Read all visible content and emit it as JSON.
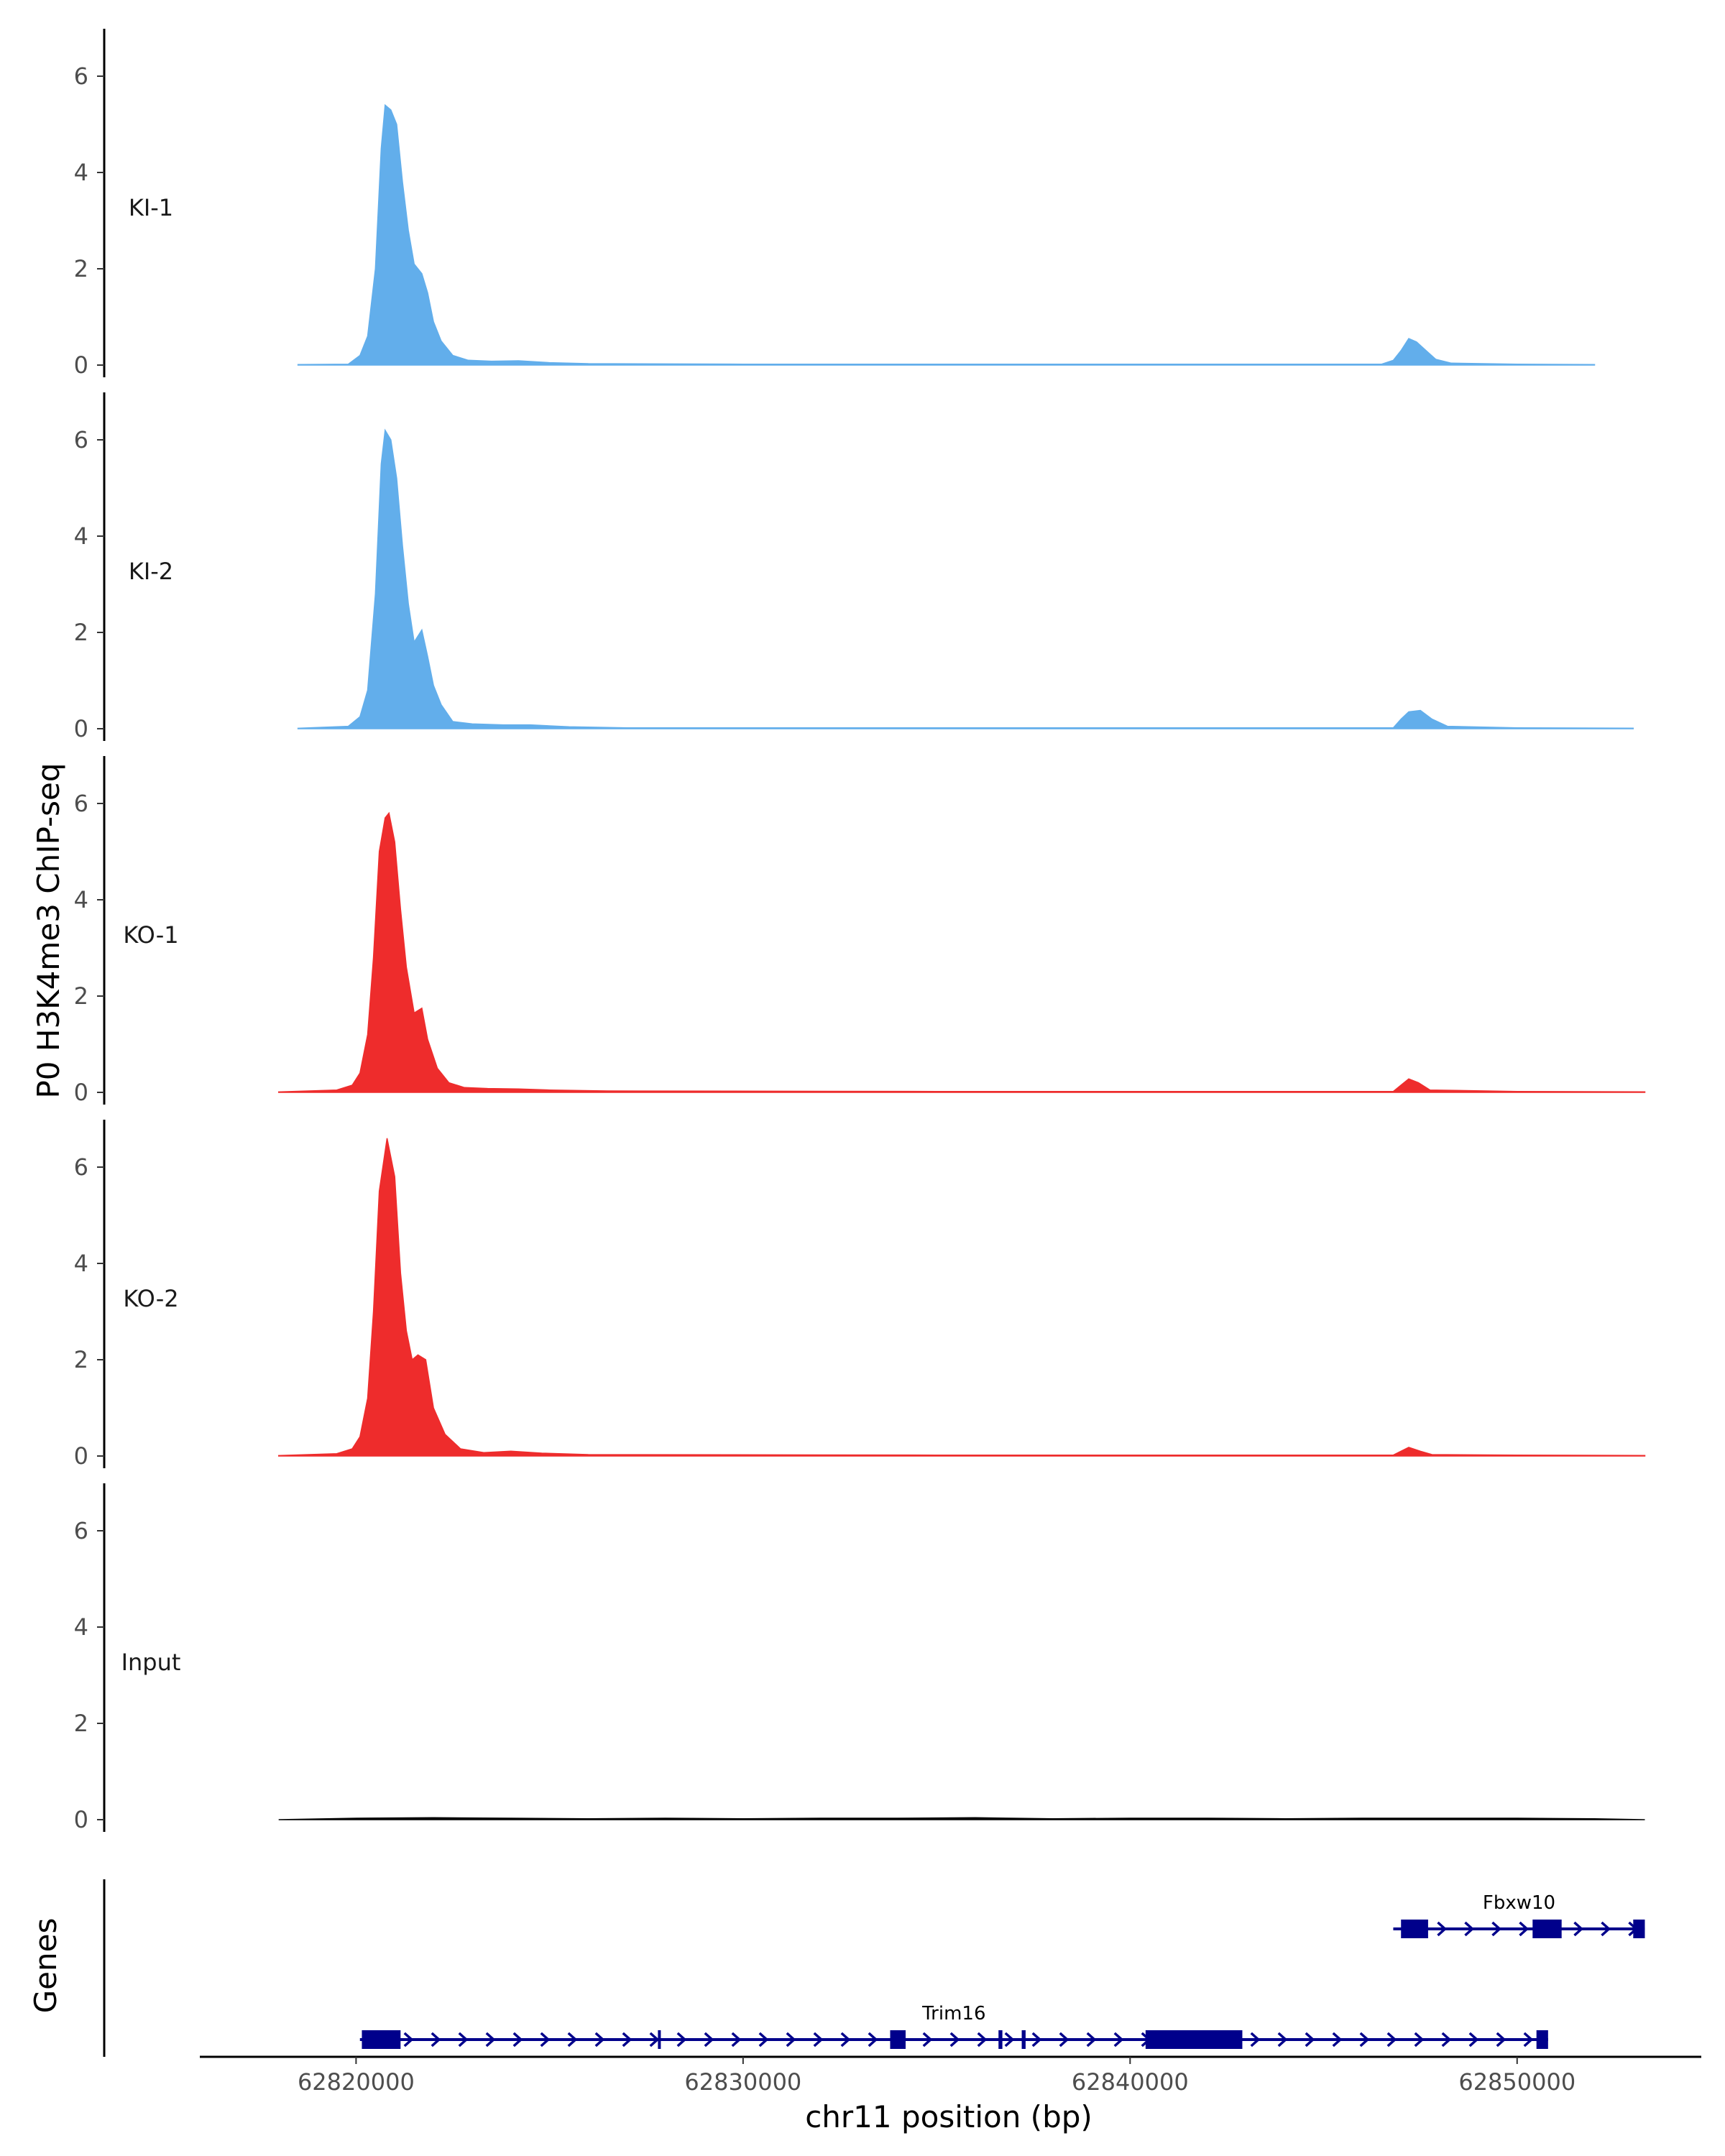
{
  "chart_data": {
    "type": "area",
    "y_axis_title": "P0 H3K4me3 ChIP-seq",
    "x_axis_title": "chr11 position (bp)",
    "genes_label": "Genes",
    "ylim": [
      0,
      7
    ],
    "y_ticks": [
      0,
      2,
      4,
      6
    ],
    "xlim": [
      62816000,
      62855000
    ],
    "x_ticks": [
      62820000,
      62830000,
      62840000,
      62850000
    ],
    "x_tick_labels": [
      "62820000",
      "62830000",
      "62840000",
      "62850000"
    ],
    "tracks": [
      {
        "name": "KI-1",
        "color": "#62aeeb",
        "points": [
          [
            62818500,
            0.01
          ],
          [
            62819800,
            0.02
          ],
          [
            62820100,
            0.2
          ],
          [
            62820300,
            0.6
          ],
          [
            62820500,
            2.0
          ],
          [
            62820650,
            4.5
          ],
          [
            62820750,
            5.4
          ],
          [
            62820900,
            5.3
          ],
          [
            62821050,
            5.0
          ],
          [
            62821200,
            3.8
          ],
          [
            62821350,
            2.8
          ],
          [
            62821500,
            2.1
          ],
          [
            62821700,
            1.9
          ],
          [
            62821850,
            1.5
          ],
          [
            62822000,
            0.9
          ],
          [
            62822200,
            0.5
          ],
          [
            62822500,
            0.2
          ],
          [
            62822900,
            0.1
          ],
          [
            62823500,
            0.08
          ],
          [
            62824200,
            0.09
          ],
          [
            62825000,
            0.05
          ],
          [
            62826000,
            0.03
          ],
          [
            62830000,
            0.02
          ],
          [
            62840000,
            0.02
          ],
          [
            62846500,
            0.02
          ],
          [
            62846800,
            0.1
          ],
          [
            62847000,
            0.3
          ],
          [
            62847200,
            0.55
          ],
          [
            62847400,
            0.48
          ],
          [
            62847650,
            0.3
          ],
          [
            62847900,
            0.12
          ],
          [
            62848300,
            0.04
          ],
          [
            62850000,
            0.02
          ],
          [
            62852000,
            0.01
          ]
        ]
      },
      {
        "name": "KI-2",
        "color": "#62aeeb",
        "points": [
          [
            62818500,
            0.01
          ],
          [
            62819800,
            0.05
          ],
          [
            62820100,
            0.25
          ],
          [
            62820300,
            0.8
          ],
          [
            62820500,
            2.8
          ],
          [
            62820650,
            5.5
          ],
          [
            62820750,
            6.2
          ],
          [
            62820900,
            6.0
          ],
          [
            62821050,
            5.2
          ],
          [
            62821200,
            3.8
          ],
          [
            62821350,
            2.6
          ],
          [
            62821500,
            1.8
          ],
          [
            62821700,
            2.05
          ],
          [
            62821850,
            1.5
          ],
          [
            62822000,
            0.9
          ],
          [
            62822200,
            0.5
          ],
          [
            62822500,
            0.15
          ],
          [
            62823000,
            0.1
          ],
          [
            62823800,
            0.08
          ],
          [
            62824500,
            0.08
          ],
          [
            62825500,
            0.04
          ],
          [
            62827000,
            0.02
          ],
          [
            62840000,
            0.02
          ],
          [
            62846800,
            0.02
          ],
          [
            62847000,
            0.2
          ],
          [
            62847200,
            0.35
          ],
          [
            62847500,
            0.38
          ],
          [
            62847800,
            0.2
          ],
          [
            62848200,
            0.05
          ],
          [
            62850000,
            0.02
          ],
          [
            62853000,
            0.01
          ]
        ]
      },
      {
        "name": "KO-1",
        "color": "#ee2c2c",
        "points": [
          [
            62818000,
            0.01
          ],
          [
            62819500,
            0.05
          ],
          [
            62819900,
            0.15
          ],
          [
            62820100,
            0.4
          ],
          [
            62820300,
            1.2
          ],
          [
            62820450,
            2.8
          ],
          [
            62820600,
            5.0
          ],
          [
            62820750,
            5.7
          ],
          [
            62820850,
            5.8
          ],
          [
            62821000,
            5.2
          ],
          [
            62821150,
            3.8
          ],
          [
            62821300,
            2.6
          ],
          [
            62821500,
            1.65
          ],
          [
            62821700,
            1.75
          ],
          [
            62821850,
            1.1
          ],
          [
            62822100,
            0.5
          ],
          [
            62822400,
            0.2
          ],
          [
            62822800,
            0.1
          ],
          [
            62823400,
            0.08
          ],
          [
            62824200,
            0.07
          ],
          [
            62825000,
            0.05
          ],
          [
            62826500,
            0.03
          ],
          [
            62835000,
            0.02
          ],
          [
            62846800,
            0.02
          ],
          [
            62847000,
            0.15
          ],
          [
            62847200,
            0.28
          ],
          [
            62847450,
            0.2
          ],
          [
            62847750,
            0.05
          ],
          [
            62850000,
            0.02
          ],
          [
            62853300,
            0.01
          ]
        ]
      },
      {
        "name": "KO-2",
        "color": "#ee2c2c",
        "points": [
          [
            62818000,
            0.01
          ],
          [
            62819500,
            0.05
          ],
          [
            62819900,
            0.15
          ],
          [
            62820100,
            0.4
          ],
          [
            62820300,
            1.2
          ],
          [
            62820450,
            3.0
          ],
          [
            62820600,
            5.5
          ],
          [
            62820800,
            6.6
          ],
          [
            62821000,
            5.8
          ],
          [
            62821150,
            3.8
          ],
          [
            62821300,
            2.6
          ],
          [
            62821450,
            2.0
          ],
          [
            62821600,
            2.1
          ],
          [
            62821800,
            2.0
          ],
          [
            62822000,
            1.0
          ],
          [
            62822300,
            0.45
          ],
          [
            62822700,
            0.15
          ],
          [
            62823300,
            0.07
          ],
          [
            62824000,
            0.1
          ],
          [
            62824800,
            0.06
          ],
          [
            62826000,
            0.03
          ],
          [
            62835000,
            0.02
          ],
          [
            62846800,
            0.02
          ],
          [
            62847000,
            0.1
          ],
          [
            62847200,
            0.18
          ],
          [
            62847500,
            0.1
          ],
          [
            62847800,
            0.03
          ],
          [
            62850000,
            0.02
          ],
          [
            62853300,
            0.01
          ]
        ]
      },
      {
        "name": "Input",
        "color": "#000000",
        "points": [
          [
            62818000,
            0.0
          ],
          [
            62820000,
            0.03
          ],
          [
            62822000,
            0.04
          ],
          [
            62824000,
            0.03
          ],
          [
            62826000,
            0.02
          ],
          [
            62828000,
            0.03
          ],
          [
            62830000,
            0.02
          ],
          [
            62832000,
            0.03
          ],
          [
            62834000,
            0.03
          ],
          [
            62836000,
            0.04
          ],
          [
            62838000,
            0.02
          ],
          [
            62840000,
            0.03
          ],
          [
            62842000,
            0.03
          ],
          [
            62844000,
            0.02
          ],
          [
            62846000,
            0.03
          ],
          [
            62848000,
            0.03
          ],
          [
            62850000,
            0.03
          ],
          [
            62852000,
            0.02
          ],
          [
            62853300,
            0.0
          ]
        ]
      }
    ],
    "genes": [
      {
        "name": "Trim16",
        "start": 62820100,
        "end": 62850800,
        "strand": "+",
        "row": 0,
        "exons": [
          [
            62820150,
            62821150
          ],
          [
            62827800,
            62827850
          ],
          [
            62833800,
            62834200
          ],
          [
            62836600,
            62836700
          ],
          [
            62837200,
            62837300
          ],
          [
            62840400,
            62842900
          ],
          [
            62850500,
            62850800
          ]
        ]
      },
      {
        "name": "Fbxw10",
        "start": 62846800,
        "end": 62853300,
        "strand": "+",
        "row": 1,
        "exons": [
          [
            62847000,
            62847700
          ],
          [
            62850400,
            62851150
          ],
          [
            62853000,
            62853300
          ]
        ]
      }
    ]
  }
}
